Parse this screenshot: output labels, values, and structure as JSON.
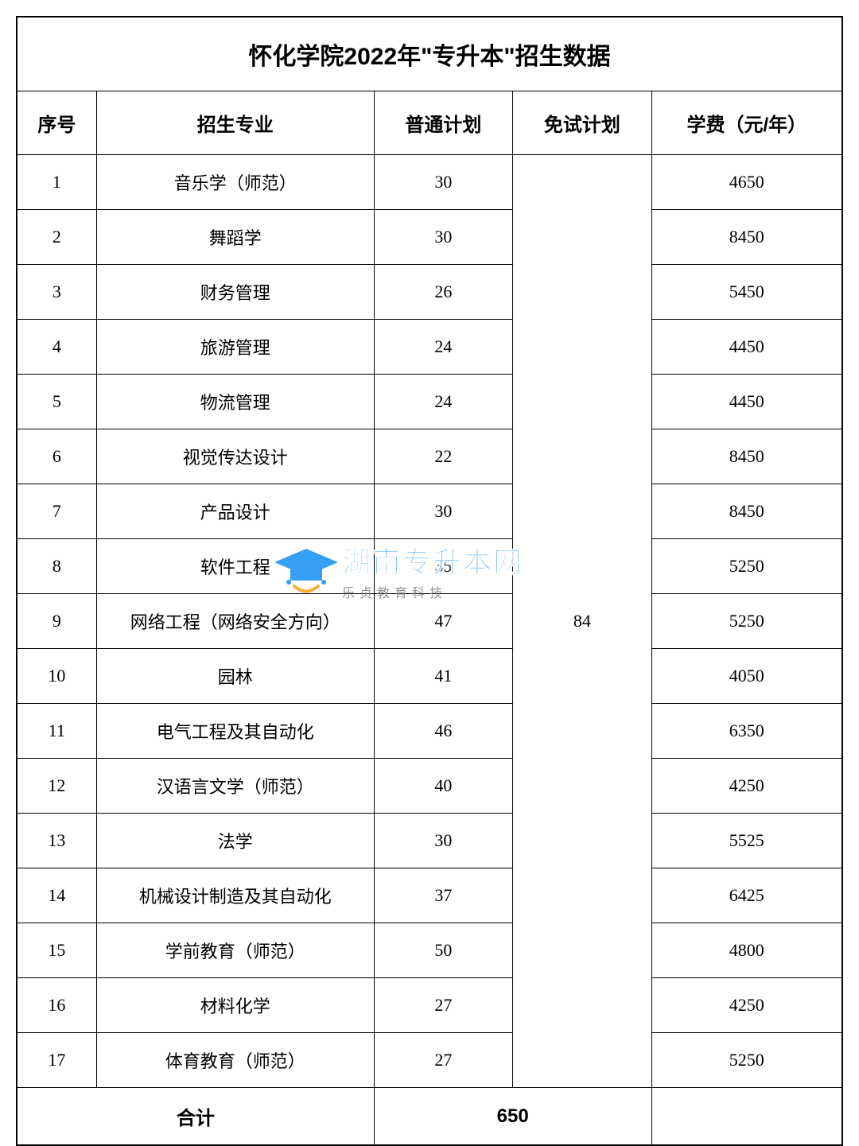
{
  "title": "怀化学院2022年\"专升本\"招生数据",
  "columns": {
    "seq": "序号",
    "major": "招生专业",
    "plan": "普通计划",
    "exempt": "免试计划",
    "tuition": "学费（元/年）"
  },
  "exempt_value": "84",
  "rows": [
    {
      "seq": "1",
      "major": "音乐学（师范）",
      "plan": "30",
      "tuition": "4650"
    },
    {
      "seq": "2",
      "major": "舞蹈学",
      "plan": "30",
      "tuition": "8450"
    },
    {
      "seq": "3",
      "major": "财务管理",
      "plan": "26",
      "tuition": "5450"
    },
    {
      "seq": "4",
      "major": "旅游管理",
      "plan": "24",
      "tuition": "4450"
    },
    {
      "seq": "5",
      "major": "物流管理",
      "plan": "24",
      "tuition": "4450"
    },
    {
      "seq": "6",
      "major": "视觉传达设计",
      "plan": "22",
      "tuition": "8450"
    },
    {
      "seq": "7",
      "major": "产品设计",
      "plan": "30",
      "tuition": "8450"
    },
    {
      "seq": "8",
      "major": "软件工程",
      "plan": "35",
      "tuition": "5250"
    },
    {
      "seq": "9",
      "major": "网络工程（网络安全方向）",
      "plan": "47",
      "tuition": "5250"
    },
    {
      "seq": "10",
      "major": "园林",
      "plan": "41",
      "tuition": "4050"
    },
    {
      "seq": "11",
      "major": "电气工程及其自动化",
      "plan": "46",
      "tuition": "6350"
    },
    {
      "seq": "12",
      "major": "汉语言文学（师范）",
      "plan": "40",
      "tuition": "4250"
    },
    {
      "seq": "13",
      "major": "法学",
      "plan": "30",
      "tuition": "5525"
    },
    {
      "seq": "14",
      "major": "机械设计制造及其自动化",
      "plan": "37",
      "tuition": "6425"
    },
    {
      "seq": "15",
      "major": "学前教育（师范）",
      "plan": "50",
      "tuition": "4800"
    },
    {
      "seq": "16",
      "major": "材料化学",
      "plan": "27",
      "tuition": "4250"
    },
    {
      "seq": "17",
      "major": "体育教育（师范）",
      "plan": "27",
      "tuition": "5250"
    }
  ],
  "total": {
    "label": "合计",
    "value": "650"
  },
  "watermark": {
    "main": "湖南专升本网",
    "sub": "乐贞教育科技",
    "cap_color": "#2196f3",
    "smile_color": "#f9a825"
  },
  "styling": {
    "border_color": "#000000",
    "background_color": "#ffffff",
    "text_color": "#000000",
    "body_fontsize": 22,
    "header_fontsize": 24,
    "title_fontsize": 30,
    "col_widths": {
      "seq": 92,
      "major": 320,
      "plan": 160,
      "exempt": 160,
      "tuition": 220
    }
  }
}
